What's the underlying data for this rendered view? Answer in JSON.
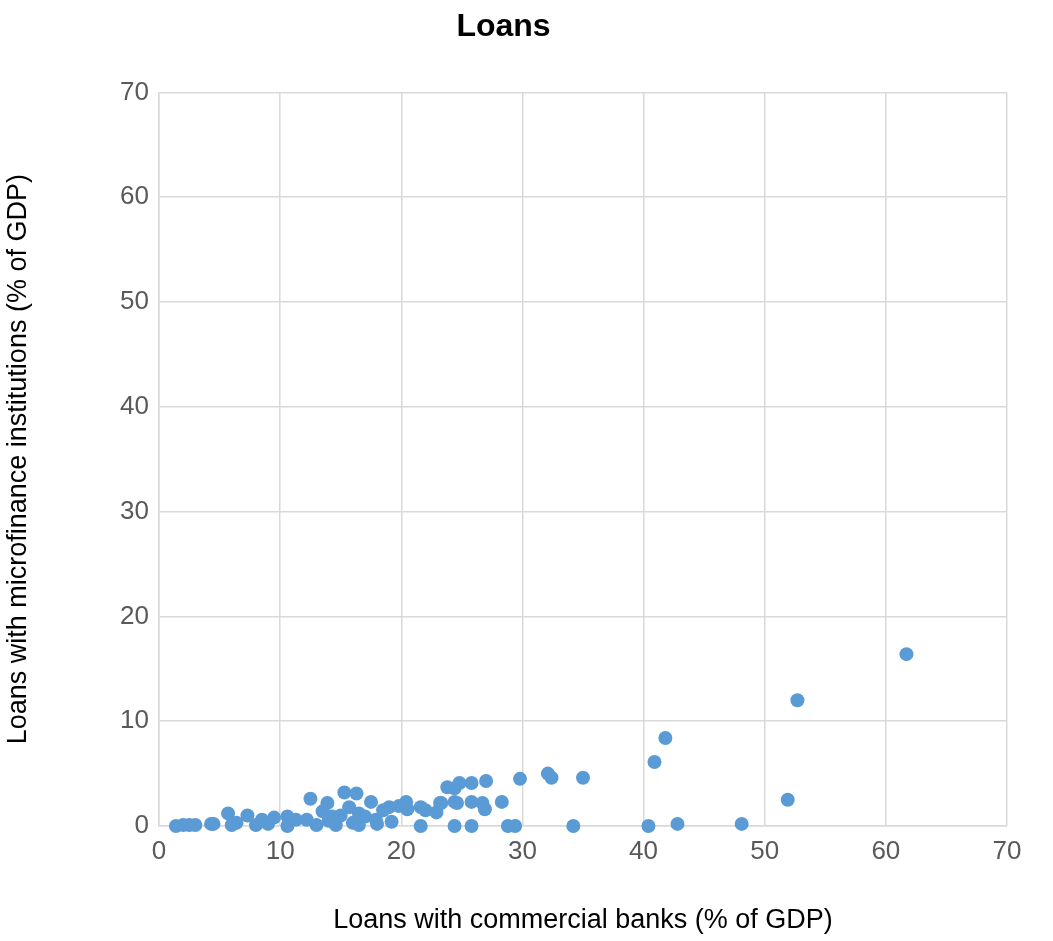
{
  "chart_data": {
    "type": "scatter",
    "title": "Loans",
    "xlabel": "Loans with commercial banks (% of GDP)",
    "ylabel": "Loans with microfinance institutions (% of GDP)",
    "xlim": [
      0,
      70
    ],
    "xticks": [
      0,
      10,
      20,
      30,
      40,
      50,
      60,
      70
    ],
    "ylim": [
      0,
      70
    ],
    "yticks": [
      0,
      10,
      20,
      30,
      40,
      50,
      60,
      70
    ],
    "grid": true,
    "marker": "circle",
    "legend": false,
    "series": [
      {
        "color": "#5b9bd5",
        "x": [
          61.7,
          52.7,
          51.9,
          41.8,
          40.9,
          40.4,
          42.8,
          48.1,
          35.0,
          34.2,
          32.1,
          32.4,
          29.8,
          28.8,
          29.4,
          28.3,
          27.0,
          26.9,
          26.7,
          25.8,
          25.8,
          25.8,
          24.8,
          24.6,
          24.4,
          24.4,
          24.4,
          23.8,
          23.3,
          23.2,
          22.9,
          21.6,
          21.6,
          20.4,
          19.2,
          19.0,
          17.9,
          17.5,
          16.5,
          16.5,
          16.3,
          15.7,
          15.3,
          14.6,
          14.3,
          13.9,
          13.0,
          12.5,
          12.2,
          11.3,
          10.6,
          10.6,
          9.5,
          8.5,
          7.3,
          6.4,
          5.7,
          4.3,
          2.5,
          1.4,
          14.0,
          15.0,
          16.0,
          17.0,
          18.0,
          18.5,
          19.8,
          20.5,
          22.0,
          13.5,
          9.0,
          8.0,
          2.0,
          3.0,
          6.0,
          4.5
        ],
        "values": [
          16.4,
          12.0,
          2.5,
          8.4,
          6.1,
          0.0,
          0.2,
          0.2,
          4.6,
          0.0,
          5.0,
          4.6,
          4.5,
          0.0,
          0.0,
          2.3,
          4.3,
          1.6,
          2.2,
          4.1,
          2.3,
          0.0,
          4.1,
          2.2,
          3.6,
          2.3,
          0.0,
          3.7,
          2.2,
          2.2,
          1.3,
          1.8,
          0.0,
          2.3,
          0.4,
          1.8,
          0.6,
          2.3,
          1.2,
          0.1,
          3.1,
          1.8,
          3.2,
          0.1,
          0.9,
          2.2,
          0.1,
          2.6,
          0.6,
          0.6,
          0.9,
          0.0,
          0.8,
          0.6,
          1.0,
          0.3,
          1.2,
          0.2,
          0.1,
          0.0,
          0.5,
          1.0,
          0.3,
          0.9,
          0.2,
          1.5,
          1.9,
          1.6,
          1.5,
          1.4,
          0.2,
          0.1,
          0.1,
          0.1,
          0.1,
          0.2
        ]
      }
    ]
  }
}
